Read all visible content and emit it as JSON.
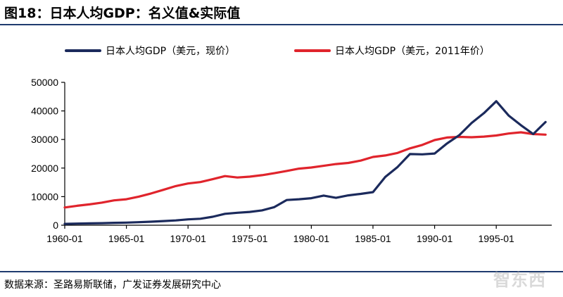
{
  "title": "图18：日本人均GDP：名义值&实际值",
  "source": "数据来源：圣路易斯联储，广发证券发展研究中心",
  "watermark": "智东西",
  "colors": {
    "nominal": "#1b2a5c",
    "real": "#e0242c",
    "rule": "#1f3b6e"
  },
  "chart_data": {
    "type": "line",
    "ylim": [
      0,
      50000
    ],
    "y_ticks": [
      0,
      10000,
      20000,
      30000,
      40000,
      50000
    ],
    "x_tick_labels": [
      "1960-01",
      "1965-01",
      "1970-01",
      "1975-01",
      "1980-01",
      "1985-01",
      "1990-01",
      "1995-01"
    ],
    "x_tick_years": [
      1960,
      1965,
      1970,
      1975,
      1980,
      1985,
      1990,
      1995
    ],
    "xlim": [
      1960,
      1999.5
    ],
    "legend_position": "top",
    "series": [
      {
        "name": "日本人均GDP（美元，现价）",
        "color": "#1b2a5c",
        "x": [
          1960,
          1961,
          1962,
          1963,
          1964,
          1965,
          1966,
          1967,
          1968,
          1969,
          1970,
          1971,
          1972,
          1973,
          1974,
          1975,
          1976,
          1977,
          1978,
          1979,
          1980,
          1981,
          1982,
          1983,
          1984,
          1985,
          1986,
          1987,
          1988,
          1989,
          1990,
          1991,
          1992,
          1993,
          1994,
          1995,
          1996,
          1997,
          1998,
          1999
        ],
        "y": [
          475,
          560,
          630,
          720,
          835,
          920,
          1060,
          1230,
          1450,
          1670,
          2040,
          2270,
          2960,
          3990,
          4350,
          4660,
          5200,
          6330,
          8820,
          9100,
          9470,
          10360,
          9580,
          10440,
          10970,
          11580,
          16900,
          20400,
          24900,
          24800,
          25100,
          28600,
          31500,
          35800,
          39200,
          43400,
          38400,
          35000,
          31900,
          36100
        ]
      },
      {
        "name": "日本人均GDP（美元，2011年价）",
        "color": "#e0242c",
        "x": [
          1960,
          1961,
          1962,
          1963,
          1964,
          1965,
          1966,
          1967,
          1968,
          1969,
          1970,
          1971,
          1972,
          1973,
          1974,
          1975,
          1976,
          1977,
          1978,
          1979,
          1980,
          1981,
          1982,
          1983,
          1984,
          1985,
          1986,
          1987,
          1988,
          1989,
          1990,
          1991,
          1992,
          1993,
          1994,
          1995,
          1996,
          1997,
          1998,
          1999
        ],
        "y": [
          6200,
          6800,
          7300,
          7900,
          8700,
          9100,
          10000,
          11100,
          12400,
          13700,
          14600,
          15100,
          16100,
          17200,
          16700,
          17000,
          17500,
          18200,
          19000,
          19800,
          20200,
          20800,
          21400,
          21800,
          22600,
          23900,
          24400,
          25300,
          26900,
          28100,
          29800,
          30700,
          30900,
          30800,
          31000,
          31400,
          32100,
          32500,
          31900,
          31700
        ]
      }
    ]
  }
}
